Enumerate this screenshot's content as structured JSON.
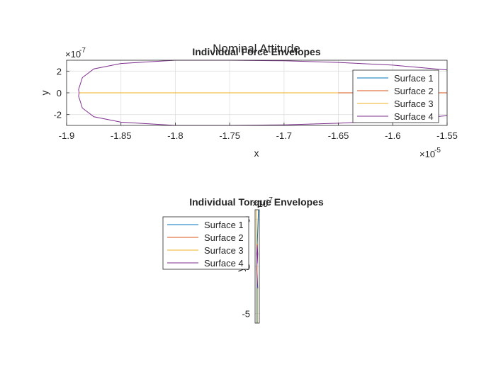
{
  "figure": {
    "title": "Nominal Attitude"
  },
  "chart_data": [
    {
      "type": "line",
      "title": "Individual Force Envelopes",
      "xlabel": "x",
      "ylabel": "y",
      "x_exponent_label": "×10",
      "x_exponent_power": "-5",
      "y_exponent_label": "×10",
      "y_exponent_power": "-7",
      "xlim": [
        -1.9e-05,
        -1.55e-05
      ],
      "ylim": [
        -3e-07,
        3e-07
      ],
      "xticks": [
        -1.9e-05,
        -1.85e-05,
        -1.8e-05,
        -1.75e-05,
        -1.7e-05,
        -1.65e-05,
        -1.6e-05,
        -1.55e-05
      ],
      "xtick_labels": [
        "-1.9",
        "-1.85",
        "-1.8",
        "-1.75",
        "-1.7",
        "-1.65",
        "-1.6",
        "-1.55"
      ],
      "yticks": [
        -2e-07,
        0,
        2e-07
      ],
      "ytick_labels": [
        "-2",
        "0",
        "2"
      ],
      "grid": true,
      "legend_position": "right",
      "series": [
        {
          "name": "Surface 1",
          "color": "#0072BD",
          "x": [
            -1.8885e-05,
            -1.8e-05,
            -1.75e-05,
            -1.7e-05,
            -1.65e-05,
            -1.6e-05,
            -1.55e-05
          ],
          "y": [
            0,
            0,
            0,
            0,
            0,
            0,
            0
          ]
        },
        {
          "name": "Surface 2",
          "color": "#D95319",
          "x": [
            -1.8885e-05,
            -1.8e-05,
            -1.75e-05,
            -1.7e-05,
            -1.65e-05,
            -1.6e-05,
            -1.55e-05
          ],
          "y": [
            0,
            0,
            0,
            0,
            0,
            0,
            0
          ]
        },
        {
          "name": "Surface 3",
          "color": "#EDB120",
          "x": [
            -1.8885e-05,
            -1.85e-05,
            -1.8e-05,
            -1.75e-05,
            -1.72e-05,
            -1.7e-05,
            -1.65e-05
          ],
          "y": [
            0,
            0,
            0,
            0,
            0,
            0,
            0
          ]
        },
        {
          "name": "Surface 4",
          "color": "#7E2F8E",
          "x": [
            -1.55e-05,
            -1.6e-05,
            -1.65e-05,
            -1.7e-05,
            -1.75e-05,
            -1.8e-05,
            -1.85e-05,
            -1.875e-05,
            -1.8855e-05,
            -1.889e-05,
            -1.8885e-05,
            -1.889e-05,
            -1.8855e-05,
            -1.875e-05,
            -1.85e-05,
            -1.8e-05,
            -1.75e-05,
            -1.7e-05,
            -1.65e-05,
            -1.6e-05,
            -1.55e-05
          ],
          "y": [
            2.1e-07,
            2.55e-07,
            2.8e-07,
            2.95e-07,
            3e-07,
            3e-07,
            2.7e-07,
            2.2e-07,
            1.4e-07,
            3e-08,
            0,
            -3e-08,
            -1.4e-07,
            -2.2e-07,
            -2.7e-07,
            -3e-07,
            -3e-07,
            -2.95e-07,
            -2.8e-07,
            -2.55e-07,
            -2.1e-07
          ]
        }
      ]
    },
    {
      "type": "line",
      "title": "Individual Torque Envelopes",
      "ylabel": "y",
      "y_exponent_label": "×10",
      "y_exponent_power": "-7",
      "ylim": [
        -6,
        6
      ],
      "yticks": [
        -5,
        0,
        5
      ],
      "ytick_labels": [
        "-5",
        "0",
        "5"
      ],
      "grid": true,
      "legend_position": "left",
      "series": [
        {
          "name": "Surface 1",
          "color": "#0072BD",
          "x": [
            -0.1,
            -0.1,
            0.05,
            0.6
          ],
          "y": [
            -6,
            -1,
            2.5,
            6
          ]
        },
        {
          "name": "Surface 2",
          "color": "#D95319",
          "x": [
            0,
            -0.2,
            0,
            0.2,
            0,
            -0.2,
            0,
            0.2,
            0
          ],
          "y": [
            2.4,
            1.4,
            0.3,
            1.4,
            2.4,
            -0.3,
            -1.4,
            -2.4,
            -1.4
          ]
        },
        {
          "name": "Surface 3",
          "color": "#EDB120",
          "x": [
            0.2,
            0.2,
            -0.1,
            -0.3,
            -0.3
          ],
          "y": [
            -6,
            -2,
            0.5,
            3,
            6
          ]
        },
        {
          "name": "Surface 4",
          "color": "#7E2F8E",
          "x": [
            0,
            -0.25,
            0,
            0.25,
            0,
            -0.25,
            0,
            0.25,
            0
          ],
          "y": [
            2.3,
            1.3,
            0.3,
            1.3,
            2.3,
            -0.3,
            -1.3,
            -2.3,
            -1.3
          ]
        }
      ]
    }
  ]
}
